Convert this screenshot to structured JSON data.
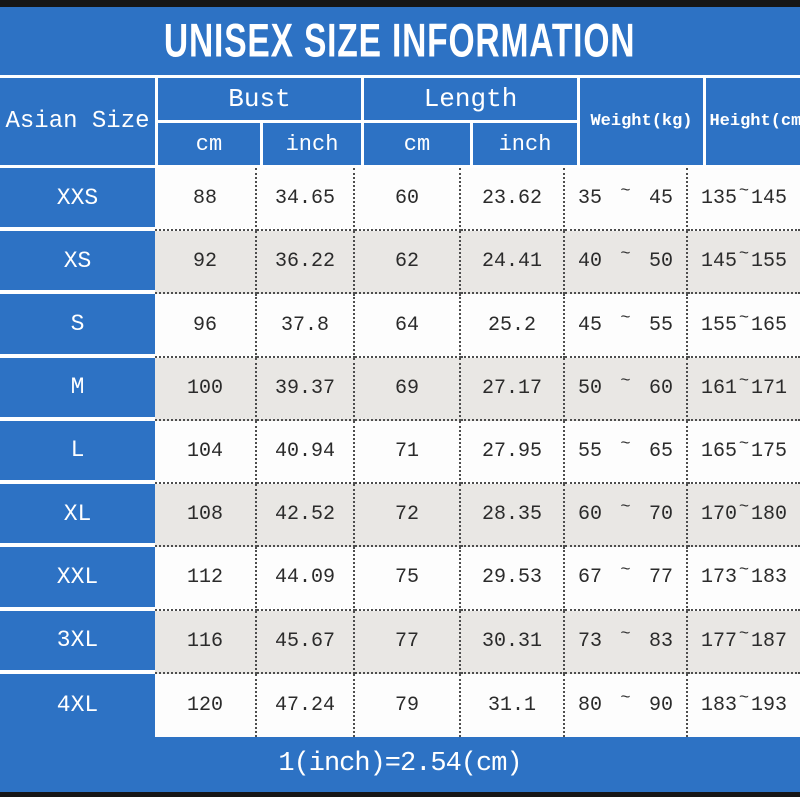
{
  "title": "UNISEX SIZE INFORMATION",
  "footer_note": "1(inch)=2.54(cm)",
  "colors": {
    "accent_blue": "#2d72c4",
    "alt_row_gray": "#e9e7e4",
    "frame_bar_black": "#161616",
    "data_text": "#2b2b2b"
  },
  "table": {
    "corner_header": "Asian Size",
    "group_headers": [
      {
        "label": "Bust",
        "sub": [
          "cm",
          "inch"
        ]
      },
      {
        "label": "Length",
        "sub": [
          "cm",
          "inch"
        ]
      }
    ],
    "span_headers": [
      "Weight(kg)",
      "Height(cm)"
    ],
    "tilde": "~",
    "rows": [
      {
        "size": "XXS",
        "bust_cm": "88",
        "bust_inch": "34.65",
        "length_cm": "60",
        "length_inch": "23.62",
        "weight_min": "35",
        "weight_max": "45",
        "height_min": "135",
        "height_max": "145"
      },
      {
        "size": "XS",
        "bust_cm": "92",
        "bust_inch": "36.22",
        "length_cm": "62",
        "length_inch": "24.41",
        "weight_min": "40",
        "weight_max": "50",
        "height_min": "145",
        "height_max": "155"
      },
      {
        "size": "S",
        "bust_cm": "96",
        "bust_inch": "37.8",
        "length_cm": "64",
        "length_inch": "25.2",
        "weight_min": "45",
        "weight_max": "55",
        "height_min": "155",
        "height_max": "165"
      },
      {
        "size": "M",
        "bust_cm": "100",
        "bust_inch": "39.37",
        "length_cm": "69",
        "length_inch": "27.17",
        "weight_min": "50",
        "weight_max": "60",
        "height_min": "161",
        "height_max": "171"
      },
      {
        "size": "L",
        "bust_cm": "104",
        "bust_inch": "40.94",
        "length_cm": "71",
        "length_inch": "27.95",
        "weight_min": "55",
        "weight_max": "65",
        "height_min": "165",
        "height_max": "175"
      },
      {
        "size": "XL",
        "bust_cm": "108",
        "bust_inch": "42.52",
        "length_cm": "72",
        "length_inch": "28.35",
        "weight_min": "60",
        "weight_max": "70",
        "height_min": "170",
        "height_max": "180"
      },
      {
        "size": "XXL",
        "bust_cm": "112",
        "bust_inch": "44.09",
        "length_cm": "75",
        "length_inch": "29.53",
        "weight_min": "67",
        "weight_max": "77",
        "height_min": "173",
        "height_max": "183"
      },
      {
        "size": "3XL",
        "bust_cm": "116",
        "bust_inch": "45.67",
        "length_cm": "77",
        "length_inch": "30.31",
        "weight_min": "73",
        "weight_max": "83",
        "height_min": "177",
        "height_max": "187"
      },
      {
        "size": "4XL",
        "bust_cm": "120",
        "bust_inch": "47.24",
        "length_cm": "79",
        "length_inch": "31.1",
        "weight_min": "80",
        "weight_max": "90",
        "height_min": "183",
        "height_max": "193"
      }
    ]
  },
  "chart_data": {
    "type": "table",
    "title": "UNISEX SIZE INFORMATION",
    "columns": [
      "Asian Size",
      "Bust cm",
      "Bust inch",
      "Length cm",
      "Length inch",
      "Weight(kg)",
      "Height(cm)"
    ],
    "rows": [
      [
        "XXS",
        "88",
        "34.65",
        "60",
        "23.62",
        "35 ~ 45",
        "135 ~ 145"
      ],
      [
        "XS",
        "92",
        "36.22",
        "62",
        "24.41",
        "40 ~ 50",
        "145 ~ 155"
      ],
      [
        "S",
        "96",
        "37.8",
        "64",
        "25.2",
        "45 ~ 55",
        "155 ~ 165"
      ],
      [
        "M",
        "100",
        "39.37",
        "69",
        "27.17",
        "50 ~ 60",
        "161 ~ 171"
      ],
      [
        "L",
        "104",
        "40.94",
        "71",
        "27.95",
        "55 ~ 65",
        "165 ~ 175"
      ],
      [
        "XL",
        "108",
        "42.52",
        "72",
        "28.35",
        "60 ~ 70",
        "170 ~ 180"
      ],
      [
        "XXL",
        "112",
        "44.09",
        "75",
        "29.53",
        "67 ~ 77",
        "173 ~ 183"
      ],
      [
        "3XL",
        "116",
        "45.67",
        "77",
        "30.31",
        "73 ~ 83",
        "177 ~ 187"
      ],
      [
        "4XL",
        "120",
        "47.24",
        "79",
        "31.1",
        "80 ~ 90",
        "183 ~ 193"
      ]
    ],
    "footnote": "1(inch)=2.54(cm)",
    "layout": {
      "header_merged_groups": [
        "Bust",
        "Length"
      ],
      "alternating_row_shading": true
    }
  }
}
